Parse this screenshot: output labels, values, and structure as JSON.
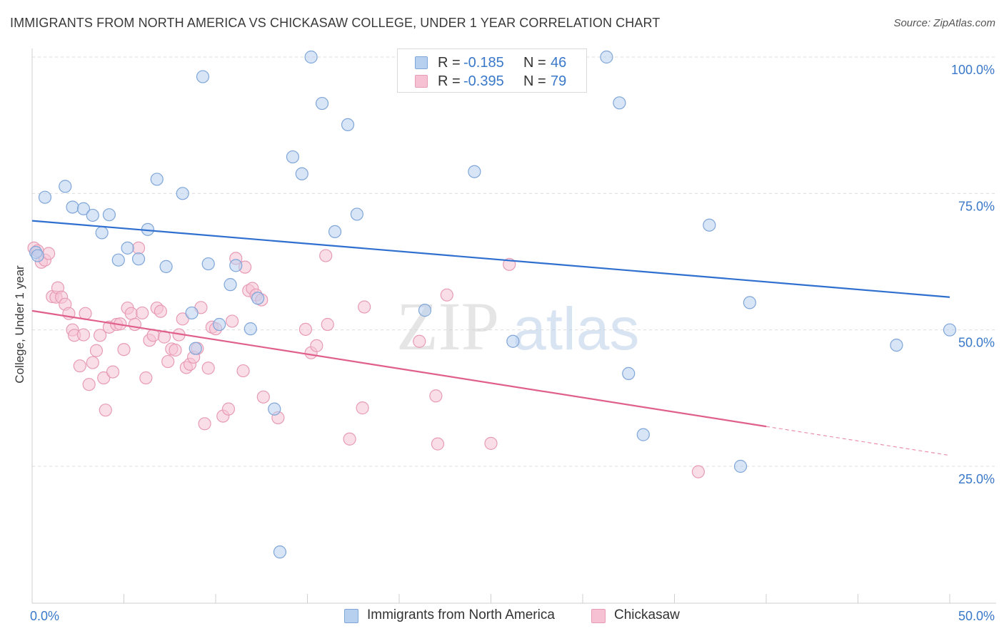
{
  "header": {
    "title": "IMMIGRANTS FROM NORTH AMERICA VS CHICKASAW COLLEGE, UNDER 1 YEAR CORRELATION CHART",
    "source": "Source: ZipAtlas.com"
  },
  "watermark": {
    "part1": "ZIP",
    "part2": "atlas"
  },
  "legend": {
    "rows": [
      {
        "r_label": "R =",
        "r_value": "-0.185",
        "n_label": "N =",
        "n_value": "46"
      },
      {
        "r_label": "R =",
        "r_value": "-0.395",
        "n_label": "N =",
        "n_value": "79"
      }
    ]
  },
  "bottom_legend": {
    "series1": "Immigrants from North America",
    "series2": "Chickasaw"
  },
  "colors": {
    "blue_fill": "#b8d0f0",
    "blue_stroke": "#7fa6d8",
    "blue_line": "#2f6fcf",
    "pink_fill": "#f6c2d3",
    "pink_stroke": "#e79bb5",
    "pink_line": "#e0608a",
    "axis_text": "#3a78c9"
  },
  "chart_data": {
    "type": "scatter",
    "title": "IMMIGRANTS FROM NORTH AMERICA VS CHICKASAW COLLEGE, UNDER 1 YEAR CORRELATION CHART",
    "xlabel": "",
    "ylabel": "College, Under 1 year",
    "xlim": [
      0,
      50
    ],
    "ylim": [
      0,
      102
    ],
    "x_tick_labels": [
      "0.0%",
      "50.0%"
    ],
    "y_ticks": [
      25,
      50,
      75,
      100
    ],
    "y_tick_labels": [
      "25.0%",
      "50.0%",
      "75.0%",
      "100.0%"
    ],
    "grid": "horizontal dashed",
    "series": [
      {
        "name": "Immigrants from North America",
        "color": "blue",
        "trend": {
          "x": [
            0,
            50
          ],
          "y": [
            70.0,
            56.0
          ]
        },
        "points": [
          [
            0.2,
            64.2
          ],
          [
            0.3,
            63.6
          ],
          [
            0.7,
            74.3
          ],
          [
            1.8,
            76.3
          ],
          [
            2.2,
            72.5
          ],
          [
            2.8,
            72.2
          ],
          [
            3.3,
            71.0
          ],
          [
            3.8,
            67.8
          ],
          [
            4.2,
            71.1
          ],
          [
            4.7,
            62.8
          ],
          [
            5.2,
            65.0
          ],
          [
            5.8,
            63.0
          ],
          [
            6.3,
            68.4
          ],
          [
            6.8,
            77.6
          ],
          [
            7.3,
            61.6
          ],
          [
            8.2,
            75.0
          ],
          [
            8.7,
            53.1
          ],
          [
            8.9,
            46.6
          ],
          [
            9.3,
            96.4
          ],
          [
            9.6,
            62.1
          ],
          [
            10.2,
            51.0
          ],
          [
            10.8,
            58.3
          ],
          [
            11.1,
            61.8
          ],
          [
            11.9,
            50.2
          ],
          [
            12.3,
            55.8
          ],
          [
            13.2,
            35.5
          ],
          [
            13.5,
            9.3
          ],
          [
            14.2,
            81.7
          ],
          [
            14.7,
            78.6
          ],
          [
            15.2,
            100.0
          ],
          [
            15.8,
            91.5
          ],
          [
            16.5,
            68.0
          ],
          [
            17.2,
            87.6
          ],
          [
            17.7,
            71.2
          ],
          [
            21.4,
            53.6
          ],
          [
            24.1,
            79.0
          ],
          [
            26.2,
            47.9
          ],
          [
            31.3,
            100.0
          ],
          [
            32.0,
            91.6
          ],
          [
            32.5,
            42.0
          ],
          [
            33.3,
            30.8
          ],
          [
            36.9,
            69.2
          ],
          [
            38.6,
            25.0
          ],
          [
            39.1,
            55.0
          ],
          [
            47.1,
            47.2
          ],
          [
            50.0,
            50.0
          ]
        ]
      },
      {
        "name": "Chickasaw",
        "color": "pink",
        "trend": {
          "x": [
            0,
            40
          ],
          "y": [
            53.5,
            32.3
          ],
          "dashed_extension": {
            "x": [
              40,
              50
            ],
            "y": [
              32.3,
              27.0
            ]
          }
        },
        "points": [
          [
            0.1,
            65.0
          ],
          [
            0.3,
            64.5
          ],
          [
            0.5,
            62.4
          ],
          [
            0.7,
            62.8
          ],
          [
            0.9,
            64.0
          ],
          [
            1.1,
            56.1
          ],
          [
            1.3,
            56.0
          ],
          [
            1.4,
            57.7
          ],
          [
            1.6,
            56.0
          ],
          [
            1.8,
            54.7
          ],
          [
            2.0,
            53.0
          ],
          [
            2.2,
            50.0
          ],
          [
            2.3,
            49.0
          ],
          [
            2.6,
            43.4
          ],
          [
            2.8,
            49.1
          ],
          [
            2.9,
            53.0
          ],
          [
            3.1,
            40.0
          ],
          [
            3.3,
            44.0
          ],
          [
            3.5,
            46.2
          ],
          [
            3.7,
            49.0
          ],
          [
            3.9,
            41.2
          ],
          [
            4.0,
            35.3
          ],
          [
            4.2,
            50.5
          ],
          [
            4.4,
            42.3
          ],
          [
            4.6,
            51.0
          ],
          [
            4.8,
            51.1
          ],
          [
            5.0,
            46.4
          ],
          [
            5.2,
            54.0
          ],
          [
            5.4,
            53.0
          ],
          [
            5.6,
            51.0
          ],
          [
            5.8,
            65.0
          ],
          [
            6.0,
            53.1
          ],
          [
            6.2,
            41.2
          ],
          [
            6.4,
            48.1
          ],
          [
            6.6,
            49.0
          ],
          [
            6.8,
            54.0
          ],
          [
            7.0,
            53.4
          ],
          [
            7.2,
            48.7
          ],
          [
            7.4,
            44.2
          ],
          [
            7.6,
            46.5
          ],
          [
            7.8,
            46.3
          ],
          [
            8.0,
            49.1
          ],
          [
            8.2,
            52.0
          ],
          [
            8.4,
            43.1
          ],
          [
            8.6,
            43.7
          ],
          [
            8.8,
            45.0
          ],
          [
            9.0,
            46.6
          ],
          [
            9.2,
            54.1
          ],
          [
            9.4,
            32.8
          ],
          [
            9.6,
            43.0
          ],
          [
            9.8,
            50.5
          ],
          [
            10.0,
            50.2
          ],
          [
            10.4,
            34.2
          ],
          [
            10.7,
            35.5
          ],
          [
            10.9,
            51.6
          ],
          [
            11.1,
            63.1
          ],
          [
            11.5,
            42.5
          ],
          [
            11.6,
            61.5
          ],
          [
            11.8,
            57.2
          ],
          [
            12.0,
            57.6
          ],
          [
            12.2,
            56.4
          ],
          [
            12.5,
            55.5
          ],
          [
            12.6,
            37.7
          ],
          [
            13.4,
            33.9
          ],
          [
            14.9,
            50.1
          ],
          [
            15.2,
            45.8
          ],
          [
            15.5,
            47.1
          ],
          [
            16.0,
            63.6
          ],
          [
            16.1,
            51.0
          ],
          [
            17.3,
            30.0
          ],
          [
            18.0,
            35.7
          ],
          [
            18.1,
            54.2
          ],
          [
            21.1,
            47.9
          ],
          [
            22.0,
            37.9
          ],
          [
            22.1,
            29.1
          ],
          [
            22.6,
            56.4
          ],
          [
            25.0,
            29.2
          ],
          [
            26.0,
            62.0
          ],
          [
            36.3,
            24.0
          ]
        ]
      }
    ]
  }
}
